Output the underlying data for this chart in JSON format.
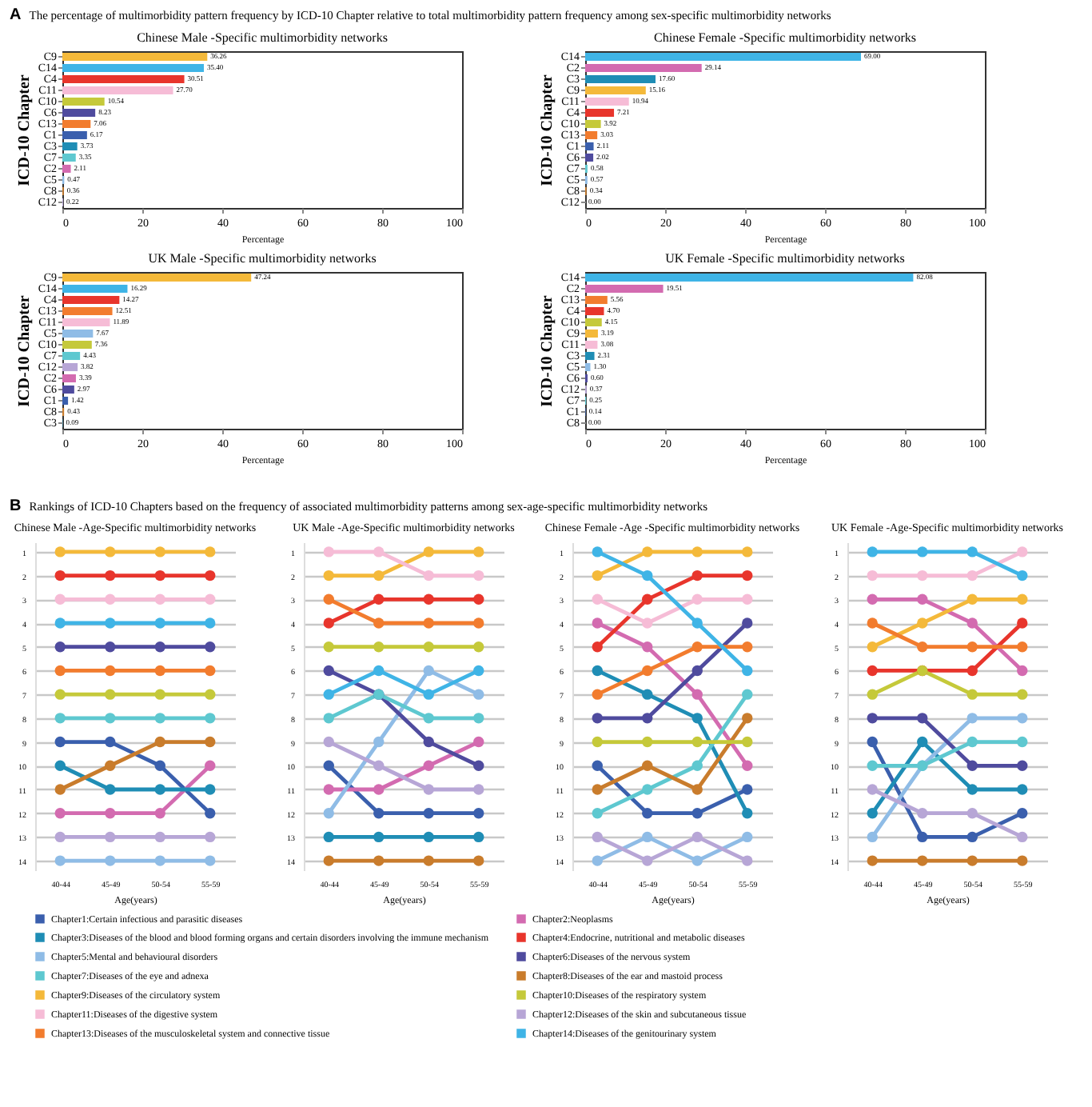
{
  "chart_data": [
    {
      "type": "bar",
      "annotations": [
        "A",
        "The percentage of multimorbidity pattern frequency by ICD-10 Chapter relative to total multimorbidity pattern frequency among sex-specific multimorbidity networks"
      ],
      "title": "Chinese Male -Specific multimorbidity networks",
      "orientation": "horizontal",
      "xlabel": "Percentage",
      "ylabel": "ICD-10 Chapter",
      "xlim": [
        0,
        100
      ],
      "xticks": [
        0,
        20,
        40,
        60,
        80,
        100
      ],
      "categories": [
        "C9",
        "C14",
        "C4",
        "C11",
        "C10",
        "C6",
        "C13",
        "C1",
        "C3",
        "C7",
        "C2",
        "C5",
        "C8",
        "C12"
      ],
      "values": [
        36.26,
        35.4,
        30.51,
        27.7,
        10.54,
        8.23,
        7.06,
        6.17,
        3.73,
        3.35,
        2.11,
        0.47,
        0.36,
        0.22
      ],
      "value_labels": [
        "36.26",
        "35.40",
        "30.51",
        "27.70",
        "10.54",
        "8.23",
        "7.06",
        "6.17",
        "3.73",
        "3.35",
        "2.11",
        "0.47",
        "0.36",
        "0.22"
      ],
      "colors": [
        "#f4b93a",
        "#3fb4e6",
        "#e8352c",
        "#f6bcd6",
        "#c5c93a",
        "#4f4b9e",
        "#f27c2e",
        "#3a5fad",
        "#1f8db5",
        "#5ec8d0",
        "#d36bb0",
        "#8fbce6",
        "#c97c2c",
        "#b7a6d6"
      ]
    },
    {
      "type": "bar",
      "title": "Chinese Female -Specific multimorbidity networks",
      "orientation": "horizontal",
      "xlabel": "Percentage",
      "ylabel": "ICD-10 Chapter",
      "xlim": [
        0,
        100
      ],
      "xticks": [
        0,
        20,
        40,
        60,
        80,
        100
      ],
      "categories": [
        "C14",
        "C2",
        "C3",
        "C9",
        "C11",
        "C4",
        "C10",
        "C13",
        "C1",
        "C6",
        "C7",
        "C5",
        "C8",
        "C12"
      ],
      "values": [
        69.0,
        29.14,
        17.6,
        15.16,
        10.94,
        7.21,
        3.92,
        3.03,
        2.11,
        2.02,
        0.58,
        0.57,
        0.34,
        0.0
      ],
      "value_labels": [
        "69.00",
        "29.14",
        "17.60",
        "15.16",
        "10.94",
        "7.21",
        "3.92",
        "3.03",
        "2.11",
        "2.02",
        "0.58",
        "0.57",
        "0.34",
        "0.00"
      ],
      "colors": [
        "#3fb4e6",
        "#d36bb0",
        "#1f8db5",
        "#f4b93a",
        "#f6bcd6",
        "#e8352c",
        "#c5c93a",
        "#f27c2e",
        "#3a5fad",
        "#4f4b9e",
        "#5ec8d0",
        "#8fbce6",
        "#c97c2c",
        "#b7a6d6"
      ]
    },
    {
      "type": "bar",
      "title": "UK Male -Specific multimorbidity networks",
      "orientation": "horizontal",
      "xlabel": "Percentage",
      "ylabel": "ICD-10 Chapter",
      "xlim": [
        0,
        100
      ],
      "xticks": [
        0,
        20,
        40,
        60,
        80,
        100
      ],
      "categories": [
        "C9",
        "C14",
        "C4",
        "C13",
        "C11",
        "C5",
        "C10",
        "C7",
        "C12",
        "C2",
        "C6",
        "C1",
        "C8",
        "C3"
      ],
      "values": [
        47.24,
        16.29,
        14.27,
        12.51,
        11.89,
        7.67,
        7.36,
        4.43,
        3.82,
        3.39,
        2.97,
        1.42,
        0.43,
        0.09
      ],
      "value_labels": [
        "47.24",
        "16.29",
        "14.27",
        "12.51",
        "11.89",
        "7.67",
        "7.36",
        "4.43",
        "3.82",
        "3.39",
        "2.97",
        "1.42",
        "0.43",
        "0.09"
      ],
      "colors": [
        "#f4b93a",
        "#3fb4e6",
        "#e8352c",
        "#f27c2e",
        "#f6bcd6",
        "#8fbce6",
        "#c5c93a",
        "#5ec8d0",
        "#b7a6d6",
        "#d36bb0",
        "#4f4b9e",
        "#3a5fad",
        "#c97c2c",
        "#1f8db5"
      ]
    },
    {
      "type": "bar",
      "title": "UK Female -Specific multimorbidity networks",
      "orientation": "horizontal",
      "xlabel": "Percentage",
      "ylabel": "ICD-10 Chapter",
      "xlim": [
        0,
        100
      ],
      "xticks": [
        0,
        20,
        40,
        60,
        80,
        100
      ],
      "categories": [
        "C14",
        "C2",
        "C13",
        "C4",
        "C10",
        "C9",
        "C11",
        "C3",
        "C5",
        "C6",
        "C12",
        "C7",
        "C1",
        "C8"
      ],
      "values": [
        82.08,
        19.51,
        5.56,
        4.7,
        4.15,
        3.19,
        3.08,
        2.31,
        1.3,
        0.6,
        0.37,
        0.25,
        0.14,
        0.0
      ],
      "value_labels": [
        "82.08",
        "19.51",
        "5.56",
        "4.70",
        "4.15",
        "3.19",
        "3.08",
        "2.31",
        "1.30",
        "0.60",
        "0.37",
        "0.25",
        "0.14",
        "0.00"
      ],
      "colors": [
        "#3fb4e6",
        "#d36bb0",
        "#f27c2e",
        "#e8352c",
        "#c5c93a",
        "#f4b93a",
        "#f6bcd6",
        "#1f8db5",
        "#8fbce6",
        "#4f4b9e",
        "#b7a6d6",
        "#5ec8d0",
        "#3a5fad",
        "#c97c2c"
      ]
    },
    {
      "type": "line",
      "annotations": [
        "B",
        "Rankings of ICD-10 Chapters based on the frequency of associated multimorbidity patterns among sex-age-specific multimorbidity networks"
      ],
      "title": "Chinese Male -Age-Specific multimorbidity networks",
      "xlabel": "Age(years)",
      "categories": [
        "40-44",
        "45-49",
        "50-54",
        "55-59"
      ],
      "ylim": [
        14.4,
        0.6
      ],
      "yticks": [
        1,
        2,
        3,
        4,
        5,
        6,
        7,
        8,
        9,
        10,
        11,
        12,
        13,
        14
      ],
      "grid": "y",
      "marker": "circle",
      "legend": "bottom",
      "series": [
        {
          "name": "Chapter1:Certain infectious and parasitic diseases",
          "color": "#3a5fad",
          "values": [
            9,
            9,
            10,
            12
          ]
        },
        {
          "name": "Chapter2:Neoplasms",
          "color": "#d36bb0",
          "values": [
            12,
            12,
            12,
            10
          ]
        },
        {
          "name": "Chapter3:Diseases of the blood and blood forming organs and certain disorders involving the immune mechanism",
          "color": "#1f8db5",
          "values": [
            10,
            11,
            11,
            11
          ]
        },
        {
          "name": "Chapter4:Endocrine, nutritional and metabolic diseases",
          "color": "#e8352c",
          "values": [
            2,
            2,
            2,
            2
          ]
        },
        {
          "name": "Chapter5:Mental and behavioural disorders",
          "color": "#8fbce6",
          "values": [
            14,
            14,
            14,
            14
          ]
        },
        {
          "name": "Chapter6:Diseases of the nervous system",
          "color": "#4f4b9e",
          "values": [
            5,
            5,
            5,
            5
          ]
        },
        {
          "name": "Chapter7:Diseases of the eye and adnexa",
          "color": "#5ec8d0",
          "values": [
            8,
            8,
            8,
            8
          ]
        },
        {
          "name": "Chapter8:Diseases of the ear and mastoid process",
          "color": "#c97c2c",
          "values": [
            11,
            10,
            9,
            9
          ]
        },
        {
          "name": "Chapter9:Diseases of the circulatory system",
          "color": "#f4b93a",
          "values": [
            1,
            1,
            1,
            1
          ]
        },
        {
          "name": "Chapter10:Diseases of the respiratory system",
          "color": "#c5c93a",
          "values": [
            7,
            7,
            7,
            7
          ]
        },
        {
          "name": "Chapter11:Diseases of the digestive system",
          "color": "#f6bcd6",
          "values": [
            3,
            3,
            3,
            3
          ]
        },
        {
          "name": "Chapter12:Diseases of the skin and subcutaneous tissue",
          "color": "#b7a6d6",
          "values": [
            13,
            13,
            13,
            13
          ]
        },
        {
          "name": "Chapter13:Diseases of the musculoskeletal system and connective tissue",
          "color": "#f27c2e",
          "values": [
            6,
            6,
            6,
            6
          ]
        },
        {
          "name": "Chapter14:Diseases of the genitourinary system",
          "color": "#3fb4e6",
          "values": [
            4,
            4,
            4,
            4
          ]
        }
      ]
    },
    {
      "type": "line",
      "title": "UK Male -Age-Specific multimorbidity networks",
      "xlabel": "Age(years)",
      "categories": [
        "40-44",
        "45-49",
        "50-54",
        "55-59"
      ],
      "ylim": [
        14.4,
        0.6
      ],
      "yticks": [
        1,
        2,
        3,
        4,
        5,
        6,
        7,
        8,
        9,
        10,
        11,
        12,
        13,
        14
      ],
      "grid": "y",
      "marker": "circle",
      "legend": "bottom",
      "series": [
        {
          "name": "Chapter1:Certain infectious and parasitic diseases",
          "color": "#3a5fad",
          "values": [
            10,
            12,
            12,
            12
          ]
        },
        {
          "name": "Chapter2:Neoplasms",
          "color": "#d36bb0",
          "values": [
            11,
            11,
            10,
            9
          ]
        },
        {
          "name": "Chapter3:Diseases of the blood and blood forming organs and certain disorders involving the immune mechanism",
          "color": "#1f8db5",
          "values": [
            13,
            13,
            13,
            13
          ]
        },
        {
          "name": "Chapter4:Endocrine, nutritional and metabolic diseases",
          "color": "#e8352c",
          "values": [
            4,
            3,
            3,
            3
          ]
        },
        {
          "name": "Chapter5:Mental and behavioural disorders",
          "color": "#8fbce6",
          "values": [
            12,
            9,
            6,
            7
          ]
        },
        {
          "name": "Chapter6:Diseases of the nervous system",
          "color": "#4f4b9e",
          "values": [
            6,
            7,
            9,
            10
          ]
        },
        {
          "name": "Chapter7:Diseases of the eye and adnexa",
          "color": "#5ec8d0",
          "values": [
            8,
            7,
            8,
            8
          ]
        },
        {
          "name": "Chapter8:Diseases of the ear and mastoid process",
          "color": "#c97c2c",
          "values": [
            14,
            14,
            14,
            14
          ]
        },
        {
          "name": "Chapter9:Diseases of the circulatory system",
          "color": "#f4b93a",
          "values": [
            2,
            2,
            1,
            1
          ]
        },
        {
          "name": "Chapter10:Diseases of the respiratory system",
          "color": "#c5c93a",
          "values": [
            5,
            5,
            5,
            5
          ]
        },
        {
          "name": "Chapter11:Diseases of the digestive system",
          "color": "#f6bcd6",
          "values": [
            1,
            1,
            2,
            2
          ]
        },
        {
          "name": "Chapter12:Diseases of the skin and subcutaneous tissue",
          "color": "#b7a6d6",
          "values": [
            9,
            10,
            11,
            11
          ]
        },
        {
          "name": "Chapter13:Diseases of the musculoskeletal system and connective tissue",
          "color": "#f27c2e",
          "values": [
            3,
            4,
            4,
            4
          ]
        },
        {
          "name": "Chapter14:Diseases of the genitourinary system",
          "color": "#3fb4e6",
          "values": [
            7,
            6,
            7,
            6
          ]
        }
      ]
    },
    {
      "type": "line",
      "title": "Chinese Female -Age -Specific multimorbidity networks",
      "xlabel": "Age(years)",
      "categories": [
        "40-44",
        "45-49",
        "50-54",
        "55-59"
      ],
      "ylim": [
        14.4,
        0.6
      ],
      "yticks": [
        1,
        2,
        3,
        4,
        5,
        6,
        7,
        8,
        9,
        10,
        11,
        12,
        13,
        14
      ],
      "grid": "y",
      "marker": "circle",
      "legend": "bottom",
      "series": [
        {
          "name": "Chapter1:Certain infectious and parasitic diseases",
          "color": "#3a5fad",
          "values": [
            10,
            12,
            12,
            11
          ]
        },
        {
          "name": "Chapter2:Neoplasms",
          "color": "#d36bb0",
          "values": [
            4,
            5,
            7,
            10
          ]
        },
        {
          "name": "Chapter3:Diseases of the blood and blood forming organs and certain disorders involving the immune mechanism",
          "color": "#1f8db5",
          "values": [
            6,
            7,
            8,
            12
          ]
        },
        {
          "name": "Chapter4:Endocrine, nutritional and metabolic diseases",
          "color": "#e8352c",
          "values": [
            5,
            3,
            2,
            2
          ]
        },
        {
          "name": "Chapter5:Mental and behavioural disorders",
          "color": "#8fbce6",
          "values": [
            14,
            13,
            14,
            13
          ]
        },
        {
          "name": "Chapter6:Diseases of the nervous system",
          "color": "#4f4b9e",
          "values": [
            8,
            8,
            6,
            4
          ]
        },
        {
          "name": "Chapter7:Diseases of the eye and adnexa",
          "color": "#5ec8d0",
          "values": [
            12,
            11,
            10,
            7
          ]
        },
        {
          "name": "Chapter8:Diseases of the ear and mastoid process",
          "color": "#c97c2c",
          "values": [
            11,
            10,
            11,
            8
          ]
        },
        {
          "name": "Chapter9:Diseases of the circulatory system",
          "color": "#f4b93a",
          "values": [
            2,
            1,
            1,
            1
          ]
        },
        {
          "name": "Chapter10:Diseases of the respiratory system",
          "color": "#c5c93a",
          "values": [
            9,
            9,
            9,
            9
          ]
        },
        {
          "name": "Chapter11:Diseases of the digestive system",
          "color": "#f6bcd6",
          "values": [
            3,
            4,
            3,
            3
          ]
        },
        {
          "name": "Chapter12:Diseases of the skin and subcutaneous tissue",
          "color": "#b7a6d6",
          "values": [
            13,
            14,
            13,
            14
          ]
        },
        {
          "name": "Chapter13:Diseases of the musculoskeletal system and connective tissue",
          "color": "#f27c2e",
          "values": [
            7,
            6,
            5,
            5
          ]
        },
        {
          "name": "Chapter14:Diseases of the genitourinary system",
          "color": "#3fb4e6",
          "values": [
            1,
            2,
            4,
            6
          ]
        }
      ]
    },
    {
      "type": "line",
      "title": "UK Female -Age-Specific multimorbidity networks",
      "xlabel": "Age(years)",
      "categories": [
        "40-44",
        "45-49",
        "50-54",
        "55-59"
      ],
      "ylim": [
        14.4,
        0.6
      ],
      "yticks": [
        1,
        2,
        3,
        4,
        5,
        6,
        7,
        8,
        9,
        10,
        11,
        12,
        13,
        14
      ],
      "grid": "y",
      "marker": "circle",
      "legend": "bottom",
      "series": [
        {
          "name": "Chapter1:Certain infectious and parasitic diseases",
          "color": "#3a5fad",
          "values": [
            9,
            13,
            13,
            12
          ]
        },
        {
          "name": "Chapter2:Neoplasms",
          "color": "#d36bb0",
          "values": [
            3,
            3,
            4,
            6
          ]
        },
        {
          "name": "Chapter3:Diseases of the blood and blood forming organs and certain disorders involving the immune mechanism",
          "color": "#1f8db5",
          "values": [
            12,
            9,
            11,
            11
          ]
        },
        {
          "name": "Chapter4:Endocrine, nutritional and metabolic diseases",
          "color": "#e8352c",
          "values": [
            6,
            6,
            6,
            4
          ]
        },
        {
          "name": "Chapter5:Mental and behavioural disorders",
          "color": "#8fbce6",
          "values": [
            13,
            10,
            8,
            8
          ]
        },
        {
          "name": "Chapter6:Diseases of the nervous system",
          "color": "#4f4b9e",
          "values": [
            8,
            8,
            10,
            10
          ]
        },
        {
          "name": "Chapter7:Diseases of the eye and adnexa",
          "color": "#5ec8d0",
          "values": [
            10,
            10,
            9,
            9
          ]
        },
        {
          "name": "Chapter8:Diseases of the ear and mastoid process",
          "color": "#c97c2c",
          "values": [
            14,
            14,
            14,
            14
          ]
        },
        {
          "name": "Chapter9:Diseases of the circulatory system",
          "color": "#f4b93a",
          "values": [
            5,
            4,
            3,
            3
          ]
        },
        {
          "name": "Chapter10:Diseases of the respiratory system",
          "color": "#c5c93a",
          "values": [
            7,
            6,
            7,
            7
          ]
        },
        {
          "name": "Chapter11:Diseases of the digestive system",
          "color": "#f6bcd6",
          "values": [
            2,
            2,
            2,
            1
          ]
        },
        {
          "name": "Chapter12:Diseases of the skin and subcutaneous tissue",
          "color": "#b7a6d6",
          "values": [
            11,
            12,
            12,
            13
          ]
        },
        {
          "name": "Chapter13:Diseases of the musculoskeletal system and connective tissue",
          "color": "#f27c2e",
          "values": [
            4,
            5,
            5,
            5
          ]
        },
        {
          "name": "Chapter14:Diseases of the genitourinary system",
          "color": "#3fb4e6",
          "values": [
            1,
            1,
            1,
            2
          ]
        }
      ]
    }
  ]
}
